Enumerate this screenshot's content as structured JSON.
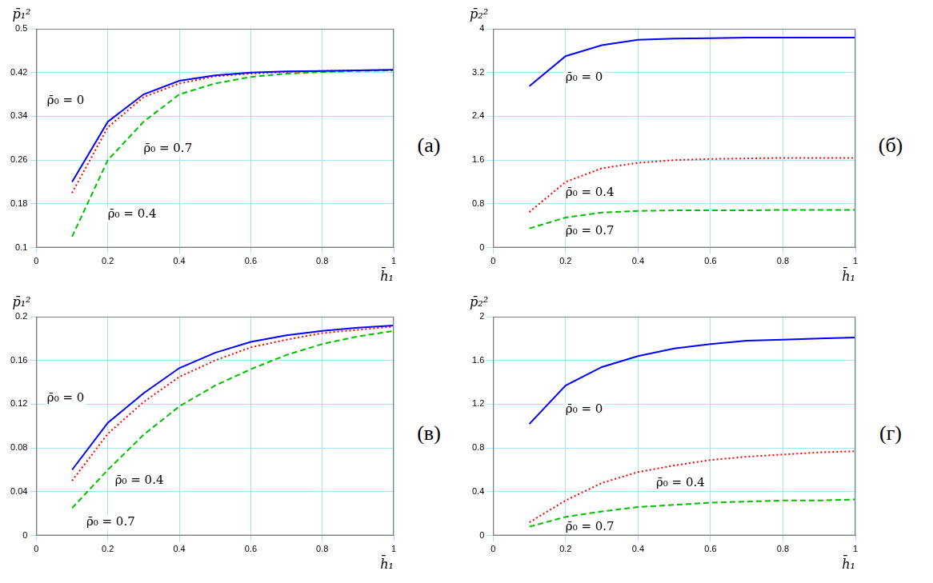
{
  "chart_data": [
    {
      "type": "line",
      "title": "(а)",
      "x_label": "h̄₁",
      "y_label": "p̄₁²",
      "x": [
        0.1,
        0.2,
        0.3,
        0.4,
        0.5,
        0.6,
        0.7,
        0.8,
        0.9,
        1.0
      ],
      "xlim": [
        0,
        1
      ],
      "xticks": [
        0,
        0.2,
        0.4,
        0.6,
        0.8,
        1
      ],
      "ylim": [
        0.1,
        0.5
      ],
      "yticks": [
        0.1,
        0.18,
        0.26,
        0.34,
        0.42,
        0.5
      ],
      "grid": true,
      "series": [
        {
          "name": "ρ̄₀ = 0",
          "color": "#0000ff",
          "line_style": "solid",
          "values": [
            0.22,
            0.33,
            0.38,
            0.405,
            0.415,
            0.42,
            0.422,
            0.423,
            0.424,
            0.425
          ]
        },
        {
          "name": "ρ̄₀ = 0.4",
          "color": "#ff0000",
          "line_style": "dotted",
          "values": [
            0.2,
            0.32,
            0.375,
            0.4,
            0.413,
            0.418,
            0.421,
            0.423,
            0.424,
            0.425
          ]
        },
        {
          "name": "ρ̄₀ = 0.7",
          "color": "#00c000",
          "line_style": "dashed",
          "values": [
            0.12,
            0.26,
            0.33,
            0.38,
            0.4,
            0.412,
            0.418,
            0.421,
            0.423,
            0.424
          ]
        }
      ]
    },
    {
      "type": "line",
      "title": "(б)",
      "x_label": "h̄₁",
      "y_label": "p̄₂²",
      "x": [
        0.1,
        0.2,
        0.3,
        0.4,
        0.5,
        0.6,
        0.7,
        0.8,
        0.9,
        1.0
      ],
      "xlim": [
        0,
        1
      ],
      "xticks": [
        0,
        0.2,
        0.4,
        0.6,
        0.8,
        1
      ],
      "ylim": [
        0,
        4
      ],
      "yticks": [
        0,
        0.8,
        1.6,
        2.4,
        3.2,
        4
      ],
      "grid": true,
      "series": [
        {
          "name": "ρ̄₀ = 0",
          "color": "#0000ff",
          "line_style": "solid",
          "values": [
            2.95,
            3.5,
            3.7,
            3.8,
            3.82,
            3.83,
            3.84,
            3.84,
            3.84,
            3.84
          ]
        },
        {
          "name": "ρ̄₀ = 0.4",
          "color": "#ff0000",
          "line_style": "dotted",
          "values": [
            0.65,
            1.2,
            1.45,
            1.55,
            1.6,
            1.62,
            1.63,
            1.64,
            1.64,
            1.64
          ]
        },
        {
          "name": "ρ̄₀ = 0.7",
          "color": "#00c000",
          "line_style": "dashed",
          "values": [
            0.35,
            0.55,
            0.64,
            0.67,
            0.68,
            0.68,
            0.68,
            0.69,
            0.69,
            0.69
          ]
        }
      ]
    },
    {
      "type": "line",
      "title": "(в)",
      "x_label": "h̄₁",
      "y_label": "p̄₁²",
      "x": [
        0.1,
        0.2,
        0.3,
        0.4,
        0.5,
        0.6,
        0.7,
        0.8,
        0.9,
        1.0
      ],
      "xlim": [
        0,
        1
      ],
      "xticks": [
        0,
        0.2,
        0.4,
        0.6,
        0.8,
        1
      ],
      "ylim": [
        0,
        0.2
      ],
      "yticks": [
        0,
        0.04,
        0.08,
        0.12,
        0.16,
        0.2
      ],
      "grid": true,
      "series": [
        {
          "name": "ρ̄₀ = 0",
          "color": "#0000ff",
          "line_style": "solid",
          "values": [
            0.06,
            0.103,
            0.13,
            0.153,
            0.167,
            0.177,
            0.183,
            0.187,
            0.19,
            0.192
          ]
        },
        {
          "name": "ρ̄₀ = 0.4",
          "color": "#ff0000",
          "line_style": "dotted",
          "values": [
            0.05,
            0.093,
            0.122,
            0.145,
            0.16,
            0.172,
            0.179,
            0.185,
            0.188,
            0.191
          ]
        },
        {
          "name": "ρ̄₀ = 0.7",
          "color": "#00c000",
          "line_style": "dashed",
          "values": [
            0.025,
            0.06,
            0.092,
            0.118,
            0.137,
            0.152,
            0.165,
            0.175,
            0.182,
            0.187
          ]
        }
      ]
    },
    {
      "type": "line",
      "title": "(г)",
      "x_label": "h̄₁",
      "y_label": "p̄₂²",
      "x": [
        0.1,
        0.2,
        0.3,
        0.4,
        0.5,
        0.6,
        0.7,
        0.8,
        0.9,
        1.0
      ],
      "xlim": [
        0,
        1
      ],
      "xticks": [
        0,
        0.2,
        0.4,
        0.6,
        0.8,
        1
      ],
      "ylim": [
        0,
        2
      ],
      "yticks": [
        0,
        0.4,
        0.8,
        1.2,
        1.6,
        2
      ],
      "grid": true,
      "series": [
        {
          "name": "ρ̄₀ = 0",
          "color": "#0000ff",
          "line_style": "solid",
          "values": [
            1.02,
            1.37,
            1.54,
            1.64,
            1.71,
            1.75,
            1.78,
            1.79,
            1.8,
            1.81
          ]
        },
        {
          "name": "ρ̄₀ = 0.4",
          "color": "#ff0000",
          "line_style": "dotted",
          "values": [
            0.12,
            0.32,
            0.48,
            0.58,
            0.64,
            0.69,
            0.72,
            0.74,
            0.76,
            0.77
          ]
        },
        {
          "name": "ρ̄₀ = 0.7",
          "color": "#00c000",
          "line_style": "dashed",
          "values": [
            0.08,
            0.17,
            0.22,
            0.26,
            0.28,
            0.3,
            0.31,
            0.32,
            0.32,
            0.33
          ]
        }
      ]
    }
  ]
}
